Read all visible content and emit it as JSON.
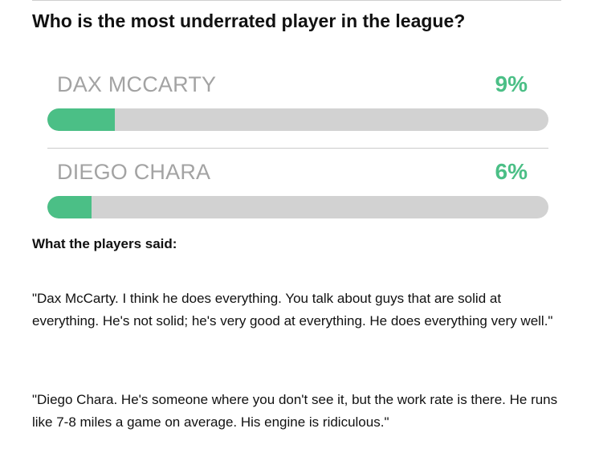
{
  "question": "Who is the most underrated player in the league?",
  "poll": {
    "options": [
      {
        "name": "DAX MCCARTY",
        "percent_label": "9%",
        "fill_fraction": 0.135
      },
      {
        "name": "DIEGO CHARA",
        "percent_label": "6%",
        "fill_fraction": 0.088
      }
    ]
  },
  "section_heading": "What the players said:",
  "quotes": [
    "\"Dax McCarty. I think he does everything. You talk about guys that are solid at everything. He's not solid; he's very good at everything. He does everything very well.\"",
    "\"Diego Chara. He's someone where you don't see it, but the work rate is there. He runs like 7-8 miles a game on average. His engine is ridiculous.\""
  ],
  "colors": {
    "accent_green": "#4bbf86",
    "bar_track": "#d2d2d2",
    "option_text": "#a3a3a3"
  }
}
